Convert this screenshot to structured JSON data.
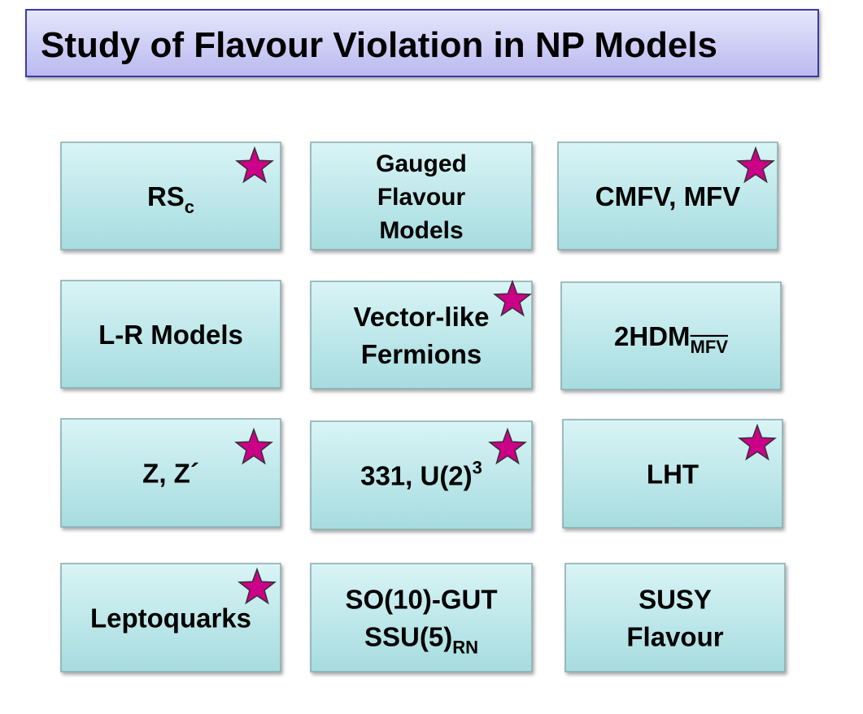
{
  "title": "Study of Flavour Violation in NP Models",
  "boxes": [
    {
      "text": "RS",
      "sub": "c"
    },
    {
      "lines": [
        "Gauged",
        "Flavour",
        "Models"
      ]
    },
    {
      "text": "CMFV, MFV"
    },
    {
      "text": "L-R Models"
    },
    {
      "lines": [
        "Vector-like",
        "Fermions"
      ]
    },
    {
      "text": "2HDM",
      "sub": "MFV"
    },
    {
      "text": "Z, Z´"
    },
    {
      "text": "331, U(2)",
      "sup": "3"
    },
    {
      "text": "LHT"
    },
    {
      "text": "Leptoquarks"
    },
    {
      "lines": [
        "SO(10)-GUT",
        "SSU(5)"
      ],
      "sub": "RN"
    },
    {
      "lines": [
        "SUSY",
        "Flavour"
      ]
    }
  ]
}
